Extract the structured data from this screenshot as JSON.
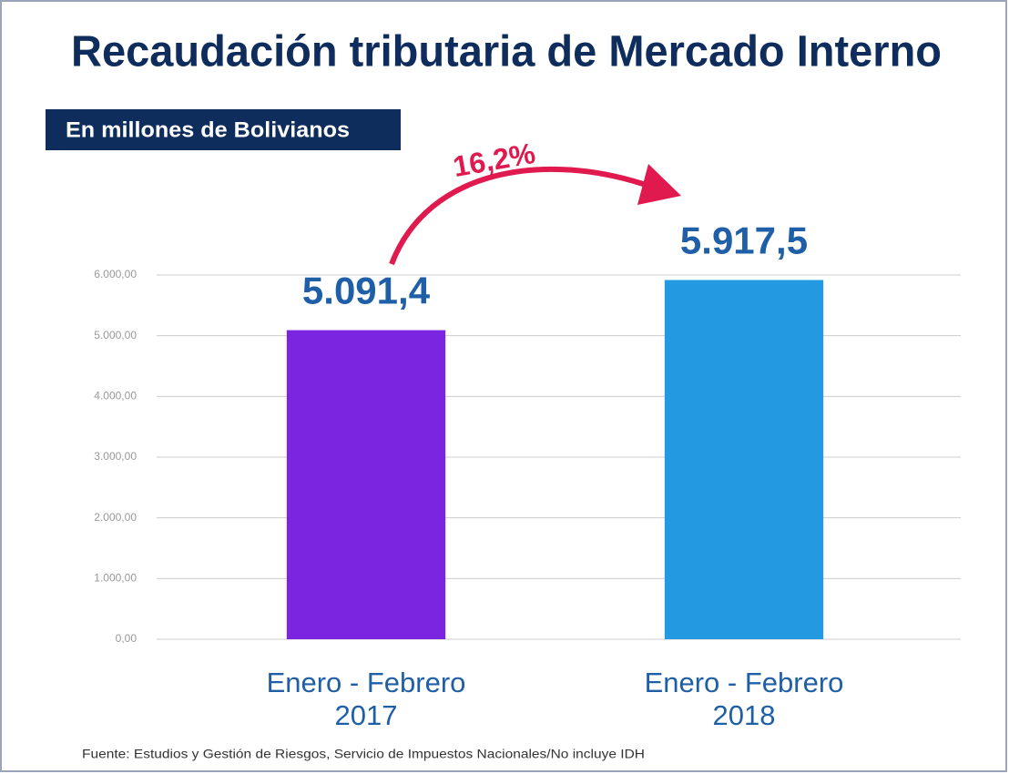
{
  "chart_data": {
    "type": "bar",
    "title": "Recaudación tributaria de Mercado Interno",
    "subtitle": "En millones de Bolivianos",
    "annotation": "16,2%",
    "source": "Fuente: Estudios y Gestión de Riesgos, Servicio de Impuestos Nacionales/No incluye IDH",
    "categories": [
      "Enero - Febrero\n2017",
      "Enero - Febrero\n2018"
    ],
    "values": [
      5091.4,
      5917.5
    ],
    "value_labels": [
      "5.091,4",
      "5.917,5"
    ],
    "colors": [
      "#7b25e0",
      "#2299e0"
    ],
    "ylim": [
      0,
      6000
    ],
    "yticks": [
      {
        "value": 0,
        "label": "0,00"
      },
      {
        "value": 1000,
        "label": "1.000,00"
      },
      {
        "value": 2000,
        "label": "2.000,00"
      },
      {
        "value": 3000,
        "label": "3.000,00"
      },
      {
        "value": 4000,
        "label": "4.000,00"
      },
      {
        "value": 5000,
        "label": "5.000,00"
      },
      {
        "value": 6000,
        "label": "6.000,00"
      }
    ],
    "grid": true
  }
}
